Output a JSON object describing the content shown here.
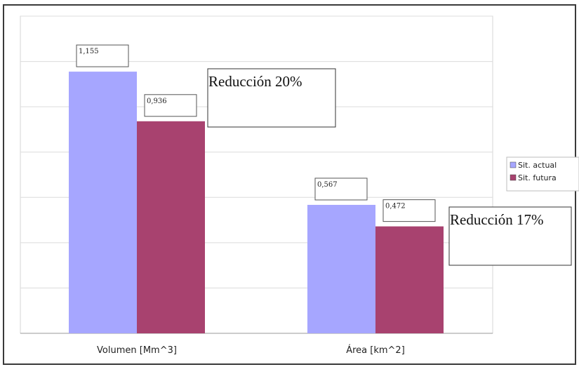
{
  "chart_data": {
    "type": "bar",
    "title": "",
    "xlabel": "",
    "ylabel": "",
    "categories": [
      "Volumen [Mm^3]",
      "Área [km^2]"
    ],
    "series": [
      {
        "name": "Sit. actual",
        "values": [
          1.155,
          0.567
        ],
        "labels": [
          "1,155",
          "0,567"
        ],
        "color": "#a6a6ff"
      },
      {
        "name": "Sit. futura",
        "values": [
          0.936,
          0.472
        ],
        "labels": [
          "0,936",
          "0,472"
        ],
        "color": "#a8426f"
      }
    ],
    "ylim": [
      0,
      1.4
    ],
    "grid": true,
    "legend": "right",
    "annotations": [
      {
        "text": "Reducción 20%",
        "category": "Volumen [Mm^3]"
      },
      {
        "text": "Reducción 17%",
        "category": "Área [km^2]"
      }
    ]
  }
}
